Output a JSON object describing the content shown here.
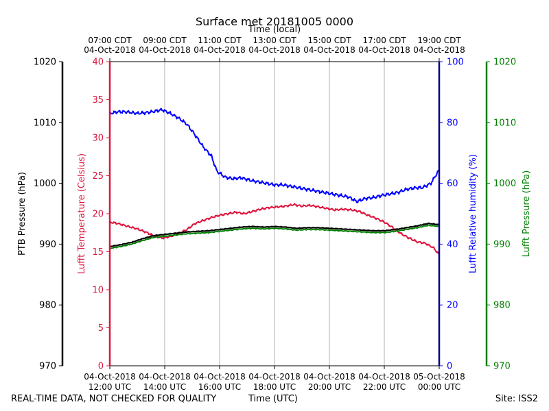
{
  "chart_data": {
    "type": "line",
    "title": "Surface met 20181005 0000",
    "top_axis": {
      "label": "Time (local)",
      "ticks": [
        {
          "time": "07:00 CDT",
          "date": "04-Oct-2018"
        },
        {
          "time": "09:00 CDT",
          "date": "04-Oct-2018"
        },
        {
          "time": "11:00 CDT",
          "date": "04-Oct-2018"
        },
        {
          "time": "13:00 CDT",
          "date": "04-Oct-2018"
        },
        {
          "time": "15:00 CDT",
          "date": "04-Oct-2018"
        },
        {
          "time": "17:00 CDT",
          "date": "04-Oct-2018"
        },
        {
          "time": "19:00 CDT",
          "date": "04-Oct-2018"
        }
      ]
    },
    "x_axis": {
      "label": "Time (UTC)",
      "range_hours_utc": [
        12,
        24
      ],
      "ticks": [
        {
          "date": "04-Oct-2018",
          "time": "12:00 UTC"
        },
        {
          "date": "04-Oct-2018",
          "time": "14:00 UTC"
        },
        {
          "date": "04-Oct-2018",
          "time": "16:00 UTC"
        },
        {
          "date": "04-Oct-2018",
          "time": "18:00 UTC"
        },
        {
          "date": "04-Oct-2018",
          "time": "20:00 UTC"
        },
        {
          "date": "04-Oct-2018",
          "time": "22:00 UTC"
        },
        {
          "date": "05-Oct-2018",
          "time": "00:00 UTC"
        }
      ]
    },
    "axes": {
      "ptb_pressure": {
        "label": "PTB Pressure (hPa)",
        "range": [
          970,
          1020
        ],
        "ticks": [
          970,
          980,
          990,
          1000,
          1010,
          1020
        ],
        "color": "#000000"
      },
      "temperature": {
        "label": "Lufft Temperature (Celsius)",
        "range": [
          0,
          40
        ],
        "ticks": [
          0,
          5,
          10,
          15,
          20,
          25,
          30,
          35,
          40
        ],
        "color": "#dc143c"
      },
      "humidity": {
        "label": "Lufft Relative humidity (%)",
        "range": [
          0,
          100
        ],
        "ticks": [
          0,
          20,
          40,
          60,
          80,
          100
        ],
        "color": "#0000ff"
      },
      "lufft_pressure": {
        "label": "Lufft Pressure (hPa)",
        "range": [
          970,
          1020
        ],
        "ticks": [
          970,
          980,
          990,
          1000,
          1010,
          1020
        ],
        "color": "#008000"
      }
    },
    "series": [
      {
        "name": "Lufft Relative humidity (%)",
        "axis": "humidity",
        "color": "#0000ff",
        "hours": [
          12.0,
          12.3,
          12.6,
          13.0,
          13.3,
          13.6,
          13.9,
          14.2,
          14.5,
          14.8,
          15.1,
          15.4,
          15.7,
          15.9,
          16.2,
          16.5,
          16.8,
          17.1,
          17.4,
          17.7,
          18.0,
          18.3,
          18.6,
          18.9,
          19.2,
          19.5,
          19.8,
          20.1,
          20.4,
          20.7,
          21.0,
          21.3,
          21.6,
          21.9,
          22.2,
          22.5,
          22.8,
          23.1,
          23.4,
          23.7,
          24.0
        ],
        "values": [
          83,
          83.5,
          83.5,
          83,
          83.2,
          83.6,
          84.2,
          83,
          81.5,
          79.5,
          76,
          72,
          69,
          64,
          62,
          61.5,
          61.8,
          61,
          60.5,
          60,
          59.5,
          59.5,
          59,
          58.5,
          58,
          57.5,
          57,
          56.5,
          56,
          55.5,
          54,
          55,
          55.3,
          56,
          56.5,
          57,
          58,
          58.5,
          58.6,
          60,
          64.5
        ]
      },
      {
        "name": "Lufft Temperature (Celsius)",
        "axis": "temperature",
        "color": "#dc143c",
        "hours": [
          12.0,
          12.3,
          12.6,
          13.0,
          13.3,
          13.6,
          13.9,
          14.2,
          14.5,
          14.8,
          15.1,
          15.4,
          15.7,
          16.0,
          16.3,
          16.6,
          16.9,
          17.2,
          17.5,
          17.8,
          18.1,
          18.4,
          18.7,
          19.0,
          19.3,
          19.6,
          19.9,
          20.2,
          20.5,
          20.8,
          21.1,
          21.4,
          21.7,
          22.0,
          22.3,
          22.6,
          22.9,
          23.2,
          23.5,
          23.8,
          24.0
        ],
        "values": [
          18.9,
          18.7,
          18.4,
          18.0,
          17.6,
          17.1,
          16.8,
          17.0,
          17.4,
          17.9,
          18.7,
          19.1,
          19.5,
          19.8,
          20.0,
          20.2,
          20.0,
          20.3,
          20.6,
          20.8,
          20.9,
          21.0,
          21.2,
          21.0,
          21.1,
          20.9,
          20.7,
          20.5,
          20.6,
          20.5,
          20.3,
          19.8,
          19.4,
          18.9,
          18.2,
          17.4,
          16.8,
          16.3,
          16.1,
          15.5,
          14.6
        ]
      },
      {
        "name": "PTB Pressure (hPa)",
        "axis": "ptb_pressure",
        "color": "#000000",
        "hours": [
          12.0,
          12.4,
          12.8,
          13.2,
          13.6,
          14.0,
          14.4,
          14.8,
          15.2,
          15.6,
          16.0,
          16.4,
          16.8,
          17.2,
          17.6,
          18.0,
          18.4,
          18.8,
          19.2,
          19.6,
          20.0,
          20.4,
          20.8,
          21.2,
          21.6,
          22.0,
          22.4,
          22.8,
          23.2,
          23.6,
          24.0
        ],
        "values": [
          989.6,
          989.9,
          990.3,
          990.9,
          991.4,
          991.6,
          991.8,
          992.0,
          992.1,
          992.2,
          992.4,
          992.6,
          992.8,
          992.9,
          992.8,
          992.9,
          992.8,
          992.6,
          992.7,
          992.7,
          992.6,
          992.5,
          992.4,
          992.3,
          992.2,
          992.2,
          992.4,
          992.7,
          993.0,
          993.4,
          993.2
        ]
      },
      {
        "name": "Lufft Pressure (hPa)",
        "axis": "lufft_pressure",
        "color": "#008000",
        "hours": [
          12.0,
          12.4,
          12.8,
          13.2,
          13.6,
          14.0,
          14.4,
          14.8,
          15.2,
          15.6,
          16.0,
          16.4,
          16.8,
          17.2,
          17.6,
          18.0,
          18.4,
          18.8,
          19.2,
          19.6,
          20.0,
          20.4,
          20.8,
          21.2,
          21.6,
          22.0,
          22.4,
          22.8,
          23.2,
          23.6,
          24.0
        ],
        "values": [
          989.3,
          989.6,
          990.0,
          990.6,
          991.1,
          991.3,
          991.5,
          991.7,
          991.8,
          991.9,
          992.1,
          992.3,
          992.5,
          992.6,
          992.5,
          992.6,
          992.5,
          992.3,
          992.4,
          992.4,
          992.3,
          992.2,
          992.1,
          992.0,
          991.9,
          991.9,
          992.1,
          992.4,
          992.7,
          993.1,
          992.9
        ]
      }
    ],
    "grid": "vertical"
  },
  "footer": {
    "disclaimer": "REAL-TIME DATA, NOT CHECKED FOR QUALITY",
    "x_label": "Time (UTC)",
    "site": "Site: ISS2"
  }
}
